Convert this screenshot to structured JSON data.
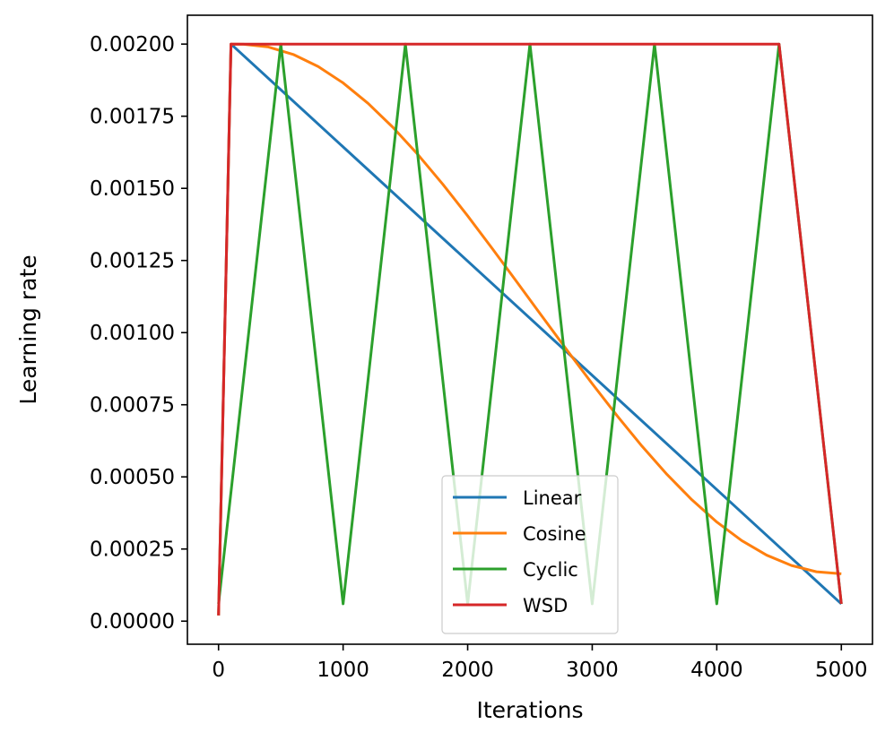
{
  "chart_data": {
    "type": "line",
    "xlabel": "Iterations",
    "ylabel": "Learning rate",
    "xlim": [
      -250,
      5250
    ],
    "ylim": [
      -8e-05,
      0.0021
    ],
    "xticks": [
      0,
      1000,
      2000,
      3000,
      4000,
      5000
    ],
    "xtick_labels": [
      "0",
      "1000",
      "2000",
      "3000",
      "4000",
      "5000"
    ],
    "yticks": [
      0,
      0.00025,
      0.0005,
      0.00075,
      0.001,
      0.00125,
      0.0015,
      0.00175,
      0.002
    ],
    "ytick_labels": [
      "0.00000",
      "0.00025",
      "0.00050",
      "0.00075",
      "0.00100",
      "0.00125",
      "0.00150",
      "0.00175",
      "0.00200"
    ],
    "grid": false,
    "legend_position": "bottom-center",
    "series": [
      {
        "name": "Linear",
        "color": "#1f77b4",
        "x": [
          0,
          100,
          5000
        ],
        "y": [
          2e-05,
          0.002,
          6e-05
        ]
      },
      {
        "name": "Cosine",
        "color": "#ff7f0e",
        "x": [
          0,
          100,
          200,
          400,
          600,
          800,
          1000,
          1200,
          1400,
          1600,
          1800,
          2000,
          2200,
          2400,
          2550,
          2800,
          3000,
          3200,
          3400,
          3600,
          3800,
          4000,
          4200,
          4400,
          4600,
          4800,
          5000
        ],
        "y": [
          2e-05,
          0.002,
          0.0019996,
          0.00199,
          0.0019641,
          0.0019223,
          0.0018654,
          0.0017946,
          0.0017114,
          0.0016174,
          0.0015144,
          0.0014045,
          0.0012899,
          0.0011728,
          0.0010842,
          0.0009378,
          0.0008229,
          0.0007116,
          0.0006062,
          0.0005086,
          0.0004206,
          0.0003436,
          0.0002793,
          0.0002288,
          0.0001929,
          0.0001712,
          0.000164
        ]
      },
      {
        "name": "Cyclic",
        "color": "#2ca02c",
        "x": [
          0,
          500,
          1000,
          1500,
          2000,
          2500,
          3000,
          3500,
          4000,
          4500,
          5000
        ],
        "y": [
          6e-05,
          0.002,
          6e-05,
          0.002,
          6e-05,
          0.002,
          6e-05,
          0.002,
          6e-05,
          0.002,
          6e-05
        ]
      },
      {
        "name": "WSD",
        "color": "#d62728",
        "x": [
          0,
          100,
          4500,
          5000
        ],
        "y": [
          2e-05,
          0.002,
          0.002,
          6e-05
        ]
      }
    ]
  }
}
